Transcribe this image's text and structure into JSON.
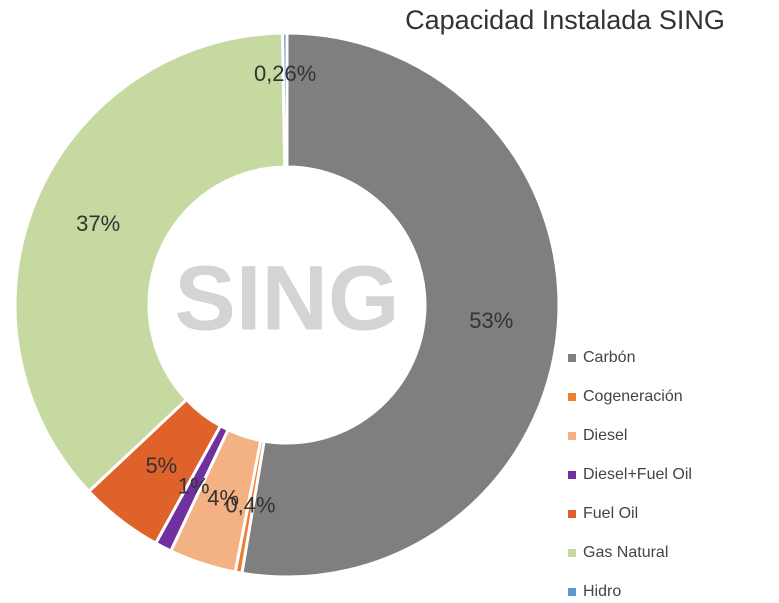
{
  "chart_data": {
    "type": "pie",
    "title": "Capacidad Instalada SING",
    "center_text": "SING",
    "categories": [
      "Carbón",
      "Cogeneración",
      "Diesel",
      "Diesel+Fuel  Oil",
      "Fuel Oil",
      "Gas Natural",
      "Hidro"
    ],
    "values": [
      53,
      0.4,
      4,
      1,
      5,
      37,
      0.26
    ],
    "value_labels": [
      "53%",
      "0,4%",
      "4%",
      "1%",
      "5%",
      "37%",
      "0,26%"
    ],
    "colors": [
      "#7f7f7f",
      "#ed7d31",
      "#f4b183",
      "#7030a0",
      "#e0622b",
      "#c5d9a0",
      "#5b9bd5"
    ],
    "legend": "right"
  }
}
